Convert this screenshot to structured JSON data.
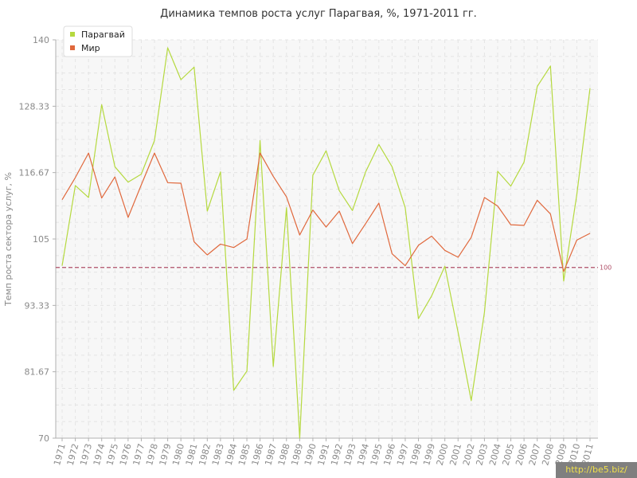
{
  "chart_data": {
    "type": "line",
    "title": "Динамика темпов роста услуг Парагвая, %, 1971-2011 гг.",
    "xlabel": "",
    "ylabel": "Темп роста сектора услуг, %",
    "ylim": [
      70,
      140
    ],
    "yticks": [
      "140",
      "128.33",
      "116.67",
      "105",
      "93.33",
      "81.67",
      "70"
    ],
    "categories": [
      "1971",
      "1972",
      "1973",
      "1974",
      "1975",
      "1976",
      "1977",
      "1978",
      "1979",
      "1980",
      "1981",
      "1982",
      "1983",
      "1984",
      "1985",
      "1986",
      "1987",
      "1988",
      "1989",
      "1990",
      "1991",
      "1992",
      "1993",
      "1994",
      "1995",
      "1996",
      "1997",
      "1998",
      "1999",
      "2000",
      "2001",
      "2002",
      "2003",
      "2004",
      "2005",
      "2006",
      "2007",
      "2008",
      "2009",
      "2010",
      "2011"
    ],
    "series": [
      {
        "name": "Парагвай",
        "color": "#b5d93f",
        "values": [
          100.3,
          114.4,
          112.3,
          128.6,
          117.7,
          115.0,
          116.4,
          122.3,
          138.6,
          133.0,
          135.2,
          109.9,
          116.8,
          78.4,
          81.8,
          122.3,
          82.6,
          110.5,
          70.0,
          116.2,
          120.5,
          113.5,
          110.0,
          116.8,
          121.6,
          117.7,
          110.5,
          91.0,
          95.0,
          100.2,
          88.6,
          76.6,
          92.1,
          116.9,
          114.3,
          118.5,
          131.8,
          135.4,
          97.6,
          112.8,
          131.5
        ]
      },
      {
        "name": "Мир",
        "color": "#e0683c",
        "values": [
          111.9,
          115.8,
          120.1,
          112.2,
          115.9,
          108.8,
          114.5,
          120.1,
          114.9,
          114.8,
          104.5,
          102.2,
          104.1,
          103.5,
          105.0,
          120.1,
          116.0,
          112.4,
          105.7,
          110.1,
          107.1,
          109.9,
          104.2,
          107.7,
          111.3,
          102.4,
          100.3,
          103.9,
          105.5,
          103.0,
          101.8,
          105.3,
          112.3,
          110.8,
          107.5,
          107.4,
          111.8,
          109.4,
          99.3,
          104.8,
          106.0
        ]
      }
    ],
    "reference_line": {
      "value": 100,
      "label": "100",
      "color": "#b05068"
    },
    "legend": "top-left",
    "grid": true
  },
  "watermark": "http://be5.biz/"
}
